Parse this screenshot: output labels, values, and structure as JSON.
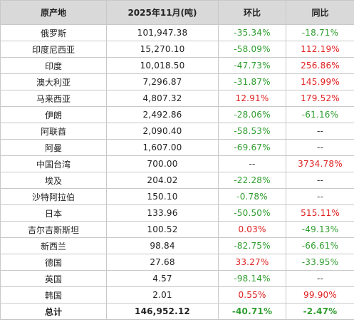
{
  "headers": [
    "原产地",
    "2025年11月(吨)",
    "环比",
    "同比"
  ],
  "colors": {
    "positive": "#e02020",
    "negative": "#2f9e2f",
    "header_bg": "#d9d9d9",
    "border": "#c8c8c8"
  },
  "rows": [
    {
      "origin": "俄罗斯",
      "amount": "101,947.38",
      "mom": "-35.34%",
      "yoy": "-18.71%"
    },
    {
      "origin": "印度尼西亚",
      "amount": "15,270.10",
      "mom": "-58.09%",
      "yoy": "112.19%"
    },
    {
      "origin": "印度",
      "amount": "10,018.50",
      "mom": "-47.73%",
      "yoy": "256.86%"
    },
    {
      "origin": "澳大利亚",
      "amount": "7,296.87",
      "mom": "-31.87%",
      "yoy": "145.99%"
    },
    {
      "origin": "马来西亚",
      "amount": "4,807.32",
      "mom": "12.91%",
      "yoy": "179.52%"
    },
    {
      "origin": "伊朗",
      "amount": "2,492.86",
      "mom": "-28.06%",
      "yoy": "-61.16%"
    },
    {
      "origin": "阿联酋",
      "amount": "2,090.40",
      "mom": "-58.53%",
      "yoy": "--"
    },
    {
      "origin": "阿曼",
      "amount": "1,607.00",
      "mom": "-69.67%",
      "yoy": "--"
    },
    {
      "origin": "中国台湾",
      "amount": "700.00",
      "mom": "--",
      "yoy": "3734.78%"
    },
    {
      "origin": "埃及",
      "amount": "204.02",
      "mom": "-22.28%",
      "yoy": "--"
    },
    {
      "origin": "沙特阿拉伯",
      "amount": "150.10",
      "mom": "-0.78%",
      "yoy": "--"
    },
    {
      "origin": "日本",
      "amount": "133.96",
      "mom": "-50.50%",
      "yoy": "515.11%"
    },
    {
      "origin": "吉尔吉斯斯坦",
      "amount": "100.52",
      "mom": "0.03%",
      "yoy": "-49.13%"
    },
    {
      "origin": "新西兰",
      "amount": "98.84",
      "mom": "-82.75%",
      "yoy": "-66.61%"
    },
    {
      "origin": "德国",
      "amount": "27.68",
      "mom": "33.27%",
      "yoy": "-33.95%"
    },
    {
      "origin": "英国",
      "amount": "4.57",
      "mom": "-98.14%",
      "yoy": "--"
    },
    {
      "origin": "韩国",
      "amount": "2.01",
      "mom": "0.55%",
      "yoy": "99.90%"
    }
  ],
  "total": {
    "origin": "总计",
    "amount": "146,952.12",
    "mom": "-40.71%",
    "yoy": "-2.47%"
  }
}
